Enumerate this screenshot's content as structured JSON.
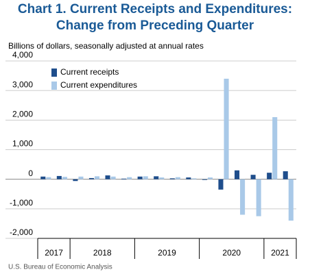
{
  "chart_data": {
    "type": "bar",
    "title": [
      "Chart 1. Current Receipts and Expenditures:",
      "Change from Preceding Quarter"
    ],
    "subtitle": "Billions of dollars, seasonally adjusted at annual rates",
    "source": "U.S. Bureau of Economic Analysis",
    "categories": [
      "2017",
      "2017",
      "2018",
      "2018",
      "2018",
      "2018",
      "2019",
      "2019",
      "2019",
      "2019",
      "2020",
      "2020",
      "2020",
      "2020",
      "2021",
      "2021"
    ],
    "series": [
      {
        "name": "Current receipts",
        "color": "#1f4e8c",
        "values": [
          90,
          110,
          -60,
          40,
          130,
          20,
          90,
          100,
          30,
          60,
          -20,
          -350,
          300,
          150,
          220,
          270
        ]
      },
      {
        "name": "Current expenditures",
        "color": "#a9c9e8",
        "values": [
          70,
          80,
          90,
          100,
          90,
          70,
          100,
          60,
          70,
          30,
          60,
          3400,
          -1200,
          -1250,
          2100,
          -1400
        ]
      }
    ],
    "ylim": [
      -2000,
      4000
    ],
    "yticks": [
      {
        "value": 4000,
        "label": "4,000"
      },
      {
        "value": 3000,
        "label": "3,000"
      },
      {
        "value": 2000,
        "label": "2,000"
      },
      {
        "value": 1000,
        "label": "1,000"
      },
      0,
      {
        "value": -1000,
        "label": "-1,000"
      },
      {
        "value": -2000,
        "label": "-2,000"
      }
    ],
    "grid": true,
    "legend": "top-left"
  }
}
